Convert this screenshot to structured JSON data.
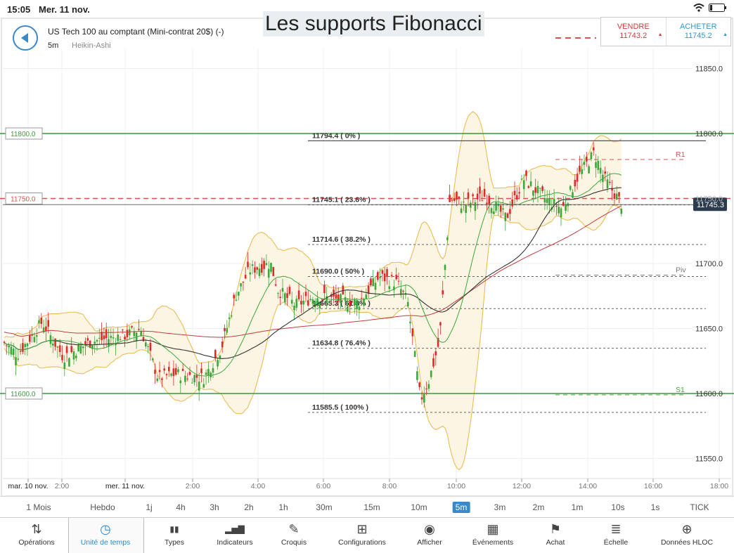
{
  "status": {
    "time": "15:05",
    "date": "Mer. 11 nov."
  },
  "title": "Les supports Fibonacci",
  "instrument": {
    "name": "US Tech 100 au comptant (Mini-contrat 20$) (-)",
    "timeframe": "5m",
    "chart_type": "Heikin-Ashi"
  },
  "trade": {
    "sell_label": "VENDRE",
    "sell_price": "11743.2",
    "buy_label": "ACHETER",
    "buy_price": "11745.2"
  },
  "colors": {
    "bull": "#3aa83a",
    "bear": "#e02a2a",
    "band": "#e8b84a",
    "band_fill": "#fdf5e3",
    "support_line": "#3a9a3a",
    "resistance_line": "#d9534f",
    "price_tag": "#2d3b4e",
    "accent": "#3b88c8"
  },
  "chart_data": {
    "type": "candlestick",
    "y_axis": {
      "ticks": [
        "11850.0",
        "11800.0",
        "11750.0",
        "11700.0",
        "11650.0",
        "11600.0",
        "11550.0"
      ],
      "ylim": [
        11535,
        11880
      ]
    },
    "x_axis": {
      "ticks": [
        "mar. 10 nov.",
        "2:00",
        "mer. 11 nov.",
        "2:00",
        "4:00",
        "6:00",
        "8:00",
        "10:00",
        "12:00",
        "14:00",
        "16:00",
        "18:00"
      ]
    },
    "horizontal_levels": [
      {
        "label": "11800.0",
        "value": 11800,
        "kind": "support"
      },
      {
        "label": "11750.0",
        "value": 11750,
        "kind": "resistance"
      },
      {
        "label": "11600.0",
        "value": 11600,
        "kind": "support"
      }
    ],
    "fibonacci": [
      {
        "label": "11794.4 ( 0% )",
        "value": 11794.4
      },
      {
        "label": "11745.1 ( 23.6% )",
        "value": 11745.1
      },
      {
        "label": "11714.6 ( 38.2% )",
        "value": 11714.6
      },
      {
        "label": "11690.0 ( 50% )",
        "value": 11690.0
      },
      {
        "label": "11665.3 ( 61.8% )",
        "value": 11665.3
      },
      {
        "label": "11634.8 ( 76.4% )",
        "value": 11634.8
      },
      {
        "label": "11585.5 ( 100% )",
        "value": 11585.5
      }
    ],
    "pivots": [
      {
        "label": "R1",
        "value": 11780
      },
      {
        "label": "Piv",
        "value": 11691
      },
      {
        "label": "S1",
        "value": 11599
      }
    ],
    "current_price": "11745.3",
    "current_value": 11745.3
  },
  "timeframes": [
    "1 Mois",
    "Hebdo",
    "1j",
    "4h",
    "3h",
    "2h",
    "1h",
    "30m",
    "15m",
    "10m",
    "5m",
    "3m",
    "2m",
    "1m",
    "10s",
    "1s",
    "TICK"
  ],
  "active_timeframe": "5m",
  "toolbar": [
    {
      "label": "Opérations",
      "icon": "sort-arrows-icon"
    },
    {
      "label": "Unité de temps",
      "icon": "clock-icon"
    },
    {
      "label": "Types",
      "icon": "candles-icon"
    },
    {
      "label": "Indicateurs",
      "icon": "bar-chart-icon"
    },
    {
      "label": "Croquis",
      "icon": "pencil-icon"
    },
    {
      "label": "Configurations",
      "icon": "layout-icon"
    },
    {
      "label": "Afficher",
      "icon": "eye-icon"
    },
    {
      "label": "Événements",
      "icon": "calendar-icon"
    },
    {
      "label": "Achat",
      "icon": "flag-icon"
    },
    {
      "label": "Échelle",
      "icon": "scale-icon"
    },
    {
      "label": "Données HLOC",
      "icon": "crosshair-icon"
    }
  ]
}
